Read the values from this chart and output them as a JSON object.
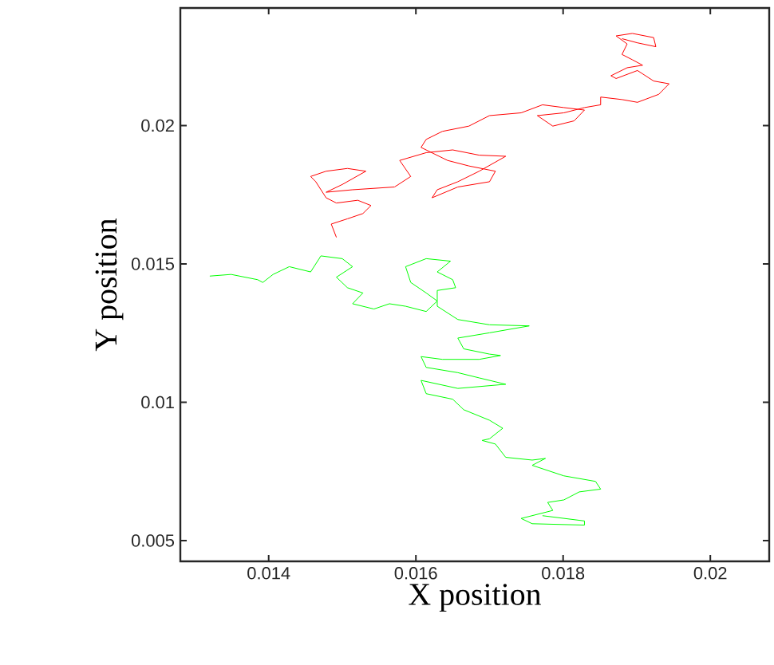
{
  "chart_data": {
    "type": "line",
    "xlabel": "X position",
    "ylabel": "Y position",
    "xlim": [
      0.0128,
      0.0208
    ],
    "ylim": [
      0.00425,
      0.02425
    ],
    "xticks": [
      0.014,
      0.016,
      0.018,
      0.02
    ],
    "yticks": [
      0.005,
      0.01,
      0.015,
      0.02
    ],
    "marker": "none",
    "line_style": "solid",
    "series": [
      {
        "color": "#ff0000",
        "x": [
          0.01492,
          0.01485,
          0.01507,
          0.01528,
          0.01539,
          0.01521,
          0.01492,
          0.01478,
          0.01464,
          0.01457,
          0.01478,
          0.01507,
          0.01532,
          0.015,
          0.01478,
          0.01514,
          0.01571,
          0.01593,
          0.01578,
          0.01614,
          0.0165,
          0.01686,
          0.01722,
          0.01686,
          0.01657,
          0.01629,
          0.01622,
          0.01657,
          0.017,
          0.01708,
          0.01672,
          0.01643,
          0.01607,
          0.01614,
          0.01636,
          0.01672,
          0.017,
          0.01743,
          0.01772,
          0.01801,
          0.01829,
          0.01815,
          0.01786,
          0.01765,
          0.01801,
          0.01829,
          0.01851,
          0.01851,
          0.0188,
          0.01901,
          0.0193,
          0.01944,
          0.01923,
          0.01901,
          0.01872,
          0.01865,
          0.01887,
          0.01908,
          0.01894,
          0.0188,
          0.01887,
          0.01872,
          0.01894,
          0.01923,
          0.01926,
          0.01901,
          0.0188
        ],
        "values": [
          0.01596,
          0.01644,
          0.01663,
          0.01682,
          0.01711,
          0.0173,
          0.0172,
          0.01739,
          0.01797,
          0.01816,
          0.01835,
          0.01845,
          0.01835,
          0.01787,
          0.01759,
          0.01768,
          0.01778,
          0.01816,
          0.01874,
          0.01902,
          0.01912,
          0.01893,
          0.01889,
          0.01835,
          0.01797,
          0.01768,
          0.01739,
          0.01778,
          0.01797,
          0.01835,
          0.01854,
          0.01874,
          0.01921,
          0.0195,
          0.01979,
          0.01998,
          0.02036,
          0.02046,
          0.02075,
          0.02065,
          0.02056,
          0.02017,
          0.01998,
          0.02036,
          0.02046,
          0.02065,
          0.02075,
          0.02103,
          0.02094,
          0.02084,
          0.02113,
          0.02151,
          0.02161,
          0.02199,
          0.0217,
          0.0218,
          0.02209,
          0.02218,
          0.02238,
          0.02257,
          0.02295,
          0.02324,
          0.02333,
          0.02318,
          0.02285,
          0.02299,
          0.02314
        ]
      },
      {
        "color": "#00ff00",
        "x": [
          0.0132,
          0.01349,
          0.01385,
          0.01392,
          0.01406,
          0.01428,
          0.01457,
          0.01471,
          0.015,
          0.01514,
          0.01492,
          0.01507,
          0.01528,
          0.01514,
          0.01543,
          0.01564,
          0.01586,
          0.01614,
          0.01629,
          0.01614,
          0.01593,
          0.01586,
          0.01614,
          0.01647,
          0.01629,
          0.0165,
          0.01654,
          0.01629,
          0.01629,
          0.01657,
          0.017,
          0.01754,
          0.017,
          0.01657,
          0.01665,
          0.017,
          0.01715,
          0.01686,
          0.01636,
          0.01607,
          0.01614,
          0.01657,
          0.01686,
          0.01722,
          0.01657,
          0.01607,
          0.01614,
          0.0165,
          0.01665,
          0.017,
          0.01718,
          0.017,
          0.0169,
          0.01708,
          0.01722,
          0.01758,
          0.01776,
          0.01758,
          0.01801,
          0.01844,
          0.01851,
          0.01822,
          0.01801,
          0.01779,
          0.01786,
          0.01743,
          0.01758,
          0.01829,
          0.01829,
          0.01772
        ],
        "values": [
          0.01456,
          0.01462,
          0.01443,
          0.01433,
          0.01462,
          0.0149,
          0.01471,
          0.01529,
          0.01519,
          0.0149,
          0.01452,
          0.01414,
          0.01395,
          0.01356,
          0.01337,
          0.01356,
          0.01347,
          0.01328,
          0.01366,
          0.01395,
          0.01433,
          0.0149,
          0.01519,
          0.0151,
          0.01471,
          0.01443,
          0.01414,
          0.01404,
          0.01347,
          0.01299,
          0.0128,
          0.01276,
          0.01251,
          0.01232,
          0.01193,
          0.01174,
          0.01169,
          0.01155,
          0.01155,
          0.01165,
          0.01126,
          0.01107,
          0.01088,
          0.01065,
          0.0105,
          0.01079,
          0.01031,
          0.01011,
          0.00973,
          0.00935,
          0.00906,
          0.00868,
          0.00862,
          0.00849,
          0.00801,
          0.00791,
          0.00797,
          0.00772,
          0.00734,
          0.00714,
          0.00686,
          0.00676,
          0.00647,
          0.00638,
          0.00609,
          0.0058,
          0.00561,
          0.00556,
          0.00571,
          0.0059
        ]
      }
    ]
  }
}
